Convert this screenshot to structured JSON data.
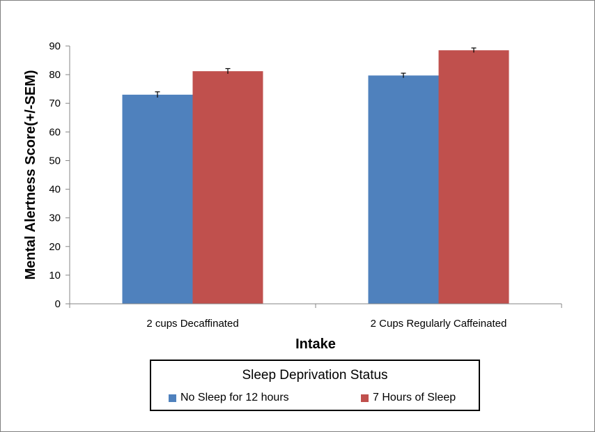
{
  "chart_data": {
    "type": "bar",
    "title": "",
    "xlabel": "Intake",
    "ylabel": "Mental Alertness Score(+/-SEM)",
    "ylim": [
      0,
      90
    ],
    "yticks": [
      0,
      10,
      20,
      30,
      40,
      50,
      60,
      70,
      80,
      90
    ],
    "categories": [
      "2 cups Decaffinated",
      "2 Cups Regularly Caffeinated"
    ],
    "series": [
      {
        "name": "No Sleep for 12 hours",
        "color": "#4f81bd",
        "values": [
          73,
          79.7
        ],
        "errors": [
          1.0,
          0.8
        ]
      },
      {
        "name": "7 Hours of Sleep",
        "color": "#c0504d",
        "values": [
          81.2,
          88.5
        ],
        "errors": [
          0.9,
          0.8
        ]
      }
    ],
    "legend": {
      "title": "Sleep Deprivation Status",
      "position": "bottom"
    }
  }
}
